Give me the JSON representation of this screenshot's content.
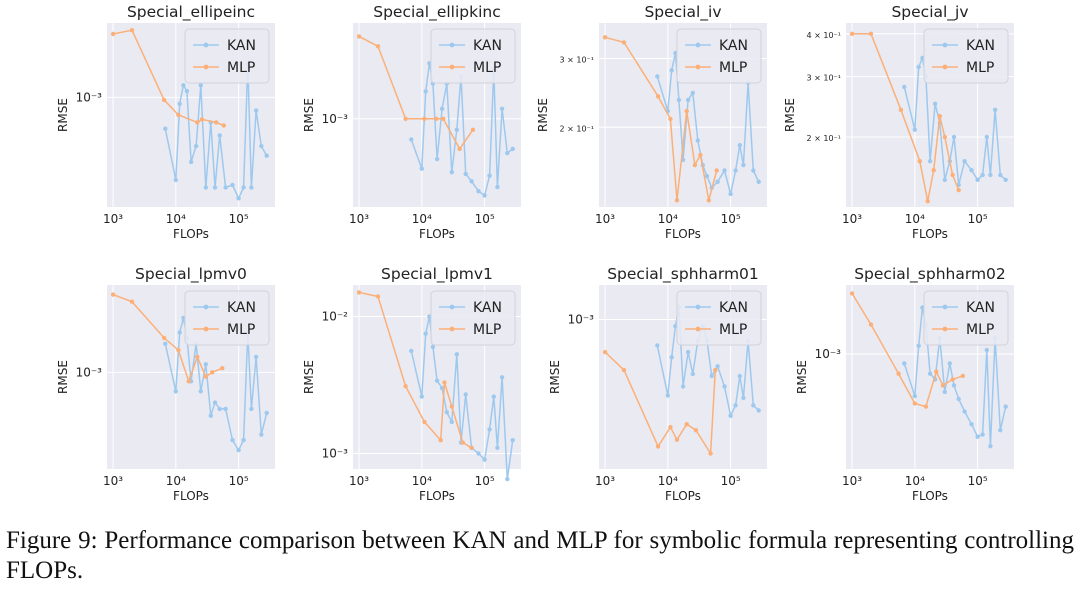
{
  "figure": {
    "caption": "Figure 9: Performance comparison between KAN and MLP for symbolic formula representing controlling FLOPs.",
    "colors": {
      "kan": "#9ec9ef",
      "mlp": "#fbb079",
      "panel_bg": "#eaeaf2",
      "grid": "#ffffff",
      "text": "#222222"
    }
  },
  "chart_data": [
    {
      "type": "line",
      "title": "Special_ellipeinc",
      "xlabel": "FLOPs",
      "ylabel": "RMSE",
      "xscale": "log",
      "yscale": "log",
      "xlim": [
        800,
        380000
      ],
      "ylim": [
        0.00042,
        0.0018
      ],
      "xticks": [
        1000,
        10000,
        100000
      ],
      "xtick_labels": [
        "10³",
        "10⁴",
        "10⁵"
      ],
      "yticks": [
        0.001
      ],
      "ytick_labels": [
        "10⁻³"
      ],
      "grid": true,
      "legend": "top-right",
      "series": [
        {
          "name": "KAN",
          "x": [
            6800,
            10000,
            11500,
            13200,
            15000,
            17500,
            21000,
            25000,
            30000,
            36000,
            42000,
            50000,
            62000,
            80000,
            100000,
            120000,
            140000,
            160000,
            190000,
            230000,
            280000
          ],
          "y": [
            0.00078,
            0.00052,
            0.00095,
            0.0011,
            0.00105,
            0.0006,
            0.00068,
            0.0011,
            0.00049,
            0.00082,
            0.00049,
            0.00074,
            0.00049,
            0.0005,
            0.00045,
            0.00049,
            0.0013,
            0.00049,
            0.0009,
            0.00068,
            0.00063
          ]
        },
        {
          "name": "MLP",
          "x": [
            1000,
            2000,
            6500,
            11000,
            22000,
            26000,
            44000,
            58000
          ],
          "y": [
            0.00165,
            0.0017,
            0.00098,
            0.00087,
            0.00082,
            0.00084,
            0.00082,
            0.0008
          ]
        }
      ]
    },
    {
      "type": "line",
      "title": "Special_ellipkinc",
      "xlabel": "FLOPs",
      "ylabel": "RMSE",
      "xscale": "log",
      "yscale": "log",
      "xlim": [
        800,
        380000
      ],
      "ylim": [
        0.00043,
        0.0025
      ],
      "xticks": [
        1000,
        10000,
        100000
      ],
      "xtick_labels": [
        "10³",
        "10⁴",
        "10⁵"
      ],
      "yticks": [
        0.001
      ],
      "ytick_labels": [
        "10⁻³"
      ],
      "grid": true,
      "legend": "top-right",
      "series": [
        {
          "name": "KAN",
          "x": [
            6800,
            10000,
            11500,
            13200,
            15000,
            17500,
            21000,
            25000,
            30000,
            36000,
            42000,
            50000,
            62000,
            80000,
            100000,
            120000,
            140000,
            160000,
            190000,
            230000,
            280000
          ],
          "y": [
            0.00082,
            0.00062,
            0.0013,
            0.0017,
            0.0014,
            0.00068,
            0.0011,
            0.0014,
            0.0006,
            0.0009,
            0.0015,
            0.00059,
            0.00055,
            0.0005,
            0.00048,
            0.00058,
            0.0016,
            0.00052,
            0.0011,
            0.00072,
            0.00075
          ]
        },
        {
          "name": "MLP",
          "x": [
            1000,
            2000,
            5500,
            11000,
            17000,
            22000,
            40000,
            65000
          ],
          "y": [
            0.0022,
            0.002,
            0.001,
            0.001,
            0.001,
            0.001,
            0.00075,
            0.0009
          ]
        }
      ]
    },
    {
      "type": "line",
      "title": "Special_iv",
      "xlabel": "FLOPs",
      "ylabel": "RMSE",
      "xscale": "log",
      "yscale": "log",
      "xlim": [
        800,
        380000
      ],
      "ylim": [
        0.125,
        0.37
      ],
      "xticks": [
        1000,
        10000,
        100000
      ],
      "xtick_labels": [
        "10³",
        "10⁴",
        "10⁵"
      ],
      "yticks": [
        0.2,
        0.3
      ],
      "ytick_labels": [
        "2 × 10⁻¹",
        "3 × 10⁻¹"
      ],
      "grid": true,
      "legend": "top-right",
      "series": [
        {
          "name": "KAN",
          "x": [
            6800,
            10000,
            11500,
            13200,
            15000,
            17500,
            21000,
            25000,
            30000,
            36000,
            42000,
            50000,
            62000,
            80000,
            100000,
            120000,
            140000,
            160000,
            190000,
            230000,
            280000
          ],
          "y": [
            0.27,
            0.22,
            0.28,
            0.31,
            0.235,
            0.165,
            0.235,
            0.245,
            0.185,
            0.16,
            0.15,
            0.14,
            0.145,
            0.155,
            0.135,
            0.155,
            0.18,
            0.16,
            0.26,
            0.155,
            0.145
          ]
        },
        {
          "name": "MLP",
          "x": [
            1000,
            2000,
            7000,
            11000,
            14000,
            20000,
            27000,
            33000,
            45000,
            60000
          ],
          "y": [
            0.34,
            0.33,
            0.24,
            0.21,
            0.13,
            0.22,
            0.16,
            0.17,
            0.13,
            0.155
          ]
        }
      ]
    },
    {
      "type": "line",
      "title": "Special_jv",
      "xlabel": "FLOPs",
      "ylabel": "RMSE",
      "xscale": "log",
      "yscale": "log",
      "xlim": [
        800,
        380000
      ],
      "ylim": [
        0.125,
        0.43
      ],
      "xticks": [
        1000,
        10000,
        100000
      ],
      "xtick_labels": [
        "10³",
        "10⁴",
        "10⁵"
      ],
      "yticks": [
        0.2,
        0.3,
        0.4
      ],
      "ytick_labels": [
        "2 × 10⁻¹",
        "3 × 10⁻¹",
        "4 × 10⁻¹"
      ],
      "grid": true,
      "legend": "top-right",
      "series": [
        {
          "name": "KAN",
          "x": [
            6800,
            10000,
            11500,
            13200,
            15000,
            17500,
            21000,
            25000,
            30000,
            36000,
            42000,
            50000,
            62000,
            80000,
            100000,
            120000,
            140000,
            160000,
            190000,
            230000,
            280000
          ],
          "y": [
            0.28,
            0.21,
            0.32,
            0.34,
            0.3,
            0.17,
            0.25,
            0.22,
            0.15,
            0.17,
            0.2,
            0.145,
            0.17,
            0.16,
            0.15,
            0.155,
            0.2,
            0.155,
            0.24,
            0.155,
            0.15
          ]
        },
        {
          "name": "MLP",
          "x": [
            1000,
            2000,
            6000,
            12000,
            16000,
            20000,
            25000,
            30000,
            40000,
            50000
          ],
          "y": [
            0.4,
            0.4,
            0.24,
            0.17,
            0.13,
            0.16,
            0.23,
            0.2,
            0.155,
            0.14
          ]
        }
      ]
    },
    {
      "type": "line",
      "title": "Special_lpmv0",
      "xlabel": "FLOPs",
      "ylabel": "RMSE",
      "xscale": "log",
      "yscale": "log",
      "xlim": [
        800,
        380000
      ],
      "ylim": [
        0.00032,
        0.0028
      ],
      "xticks": [
        1000,
        10000,
        100000
      ],
      "xtick_labels": [
        "10³",
        "10⁴",
        "10⁵"
      ],
      "yticks": [
        0.001
      ],
      "ytick_labels": [
        "10⁻³"
      ],
      "grid": true,
      "legend": "top-right",
      "series": [
        {
          "name": "KAN",
          "x": [
            6800,
            10000,
            11500,
            13200,
            15000,
            17500,
            21000,
            25000,
            30000,
            36000,
            42000,
            50000,
            62000,
            80000,
            100000,
            120000,
            140000,
            160000,
            190000,
            230000,
            280000
          ],
          "y": [
            0.0014,
            0.0008,
            0.0016,
            0.0019,
            0.0015,
            0.0009,
            0.0014,
            0.0008,
            0.0011,
            0.0006,
            0.0007,
            0.00065,
            0.00065,
            0.00045,
            0.0004,
            0.00045,
            0.0016,
            0.00065,
            0.0012,
            0.00048,
            0.00062
          ]
        },
        {
          "name": "MLP",
          "x": [
            1000,
            2000,
            6500,
            11000,
            16000,
            22000,
            30000,
            38000,
            55000
          ],
          "y": [
            0.0025,
            0.0023,
            0.0015,
            0.0013,
            0.0009,
            0.0012,
            0.00095,
            0.001,
            0.00105
          ]
        }
      ]
    },
    {
      "type": "line",
      "title": "Special_lpmv1",
      "xlabel": "FLOPs",
      "ylabel": "RMSE",
      "xscale": "log",
      "yscale": "log",
      "xlim": [
        800,
        380000
      ],
      "ylim": [
        0.00077,
        0.017
      ],
      "xticks": [
        1000,
        10000,
        100000
      ],
      "xtick_labels": [
        "10³",
        "10⁴",
        "10⁵"
      ],
      "yticks": [
        0.001,
        0.01
      ],
      "ytick_labels": [
        "10⁻³",
        "10⁻²"
      ],
      "grid": true,
      "legend": "top-right",
      "series": [
        {
          "name": "KAN",
          "x": [
            6800,
            10000,
            11500,
            13200,
            15000,
            17500,
            21000,
            25000,
            30000,
            36000,
            42000,
            50000,
            62000,
            80000,
            100000,
            120000,
            140000,
            160000,
            190000,
            230000,
            280000
          ],
          "y": [
            0.0056,
            0.0026,
            0.0075,
            0.01,
            0.006,
            0.0034,
            0.003,
            0.002,
            0.0017,
            0.0053,
            0.0012,
            0.0027,
            0.0011,
            0.001,
            0.0009,
            0.0015,
            0.0026,
            0.0011,
            0.0036,
            0.00065,
            0.00125
          ]
        },
        {
          "name": "MLP",
          "x": [
            1000,
            2000,
            5500,
            11000,
            20000,
            23000,
            30000,
            45000,
            62000
          ],
          "y": [
            0.015,
            0.014,
            0.0031,
            0.0017,
            0.00125,
            0.0033,
            0.0022,
            0.0012,
            0.0011
          ]
        }
      ]
    },
    {
      "type": "line",
      "title": "Special_sphharm01",
      "xlabel": "FLOPs",
      "ylabel": "RMSE",
      "xscale": "log",
      "yscale": "log",
      "xlim": [
        800,
        380000
      ],
      "ylim": [
        0.00032,
        0.0013
      ],
      "xticks": [
        1000,
        10000,
        100000
      ],
      "xtick_labels": [
        "10³",
        "10⁴",
        "10⁵"
      ],
      "yticks": [
        0.001
      ],
      "ytick_labels": [
        "10⁻³"
      ],
      "grid": true,
      "legend": "top-right",
      "series": [
        {
          "name": "KAN",
          "x": [
            6800,
            10000,
            11500,
            13200,
            15000,
            17500,
            21000,
            25000,
            30000,
            36000,
            42000,
            50000,
            62000,
            80000,
            100000,
            120000,
            140000,
            160000,
            190000,
            230000,
            280000
          ],
          "y": [
            0.00082,
            0.00056,
            0.00075,
            0.00095,
            0.0011,
            0.0006,
            0.00078,
            0.00066,
            0.00085,
            0.00095,
            0.00085,
            0.00065,
            0.0007,
            0.0006,
            0.00048,
            0.00052,
            0.00065,
            0.00055,
            0.00085,
            0.00052,
            0.0005
          ]
        },
        {
          "name": "MLP",
          "x": [
            1000,
            2000,
            7000,
            11000,
            14000,
            20000,
            28000,
            48000,
            57000
          ],
          "y": [
            0.00078,
            0.00068,
            0.00038,
            0.00044,
            0.0004,
            0.00045,
            0.00043,
            0.00036,
            0.00068
          ]
        }
      ]
    },
    {
      "type": "line",
      "title": "Special_sphharm02",
      "xlabel": "FLOPs",
      "ylabel": "RMSE",
      "xscale": "log",
      "yscale": "log",
      "xlim": [
        800,
        380000
      ],
      "ylim": [
        0.00027,
        0.0022
      ],
      "xticks": [
        1000,
        10000,
        100000
      ],
      "xtick_labels": [
        "10³",
        "10⁴",
        "10⁵"
      ],
      "yticks": [
        0.001
      ],
      "ytick_labels": [
        "10⁻³"
      ],
      "grid": true,
      "legend": "top-right",
      "series": [
        {
          "name": "KAN",
          "x": [
            6800,
            10000,
            11500,
            13200,
            15000,
            17500,
            21000,
            25000,
            30000,
            36000,
            42000,
            50000,
            62000,
            80000,
            100000,
            120000,
            140000,
            160000,
            190000,
            230000,
            280000
          ],
          "y": [
            0.0009,
            0.00062,
            0.0011,
            0.0017,
            0.0014,
            0.0008,
            0.00075,
            0.0012,
            0.00065,
            0.0009,
            0.0007,
            0.0006,
            0.00052,
            0.00045,
            0.00039,
            0.0004,
            0.00105,
            0.00035,
            0.0012,
            0.00042,
            0.00055
          ]
        },
        {
          "name": "MLP",
          "x": [
            1000,
            2000,
            5500,
            10000,
            15000,
            22000,
            28000,
            40000,
            58000
          ],
          "y": [
            0.002,
            0.0014,
            0.0008,
            0.00057,
            0.00055,
            0.00082,
            0.0007,
            0.00075,
            0.00078
          ]
        }
      ]
    }
  ]
}
